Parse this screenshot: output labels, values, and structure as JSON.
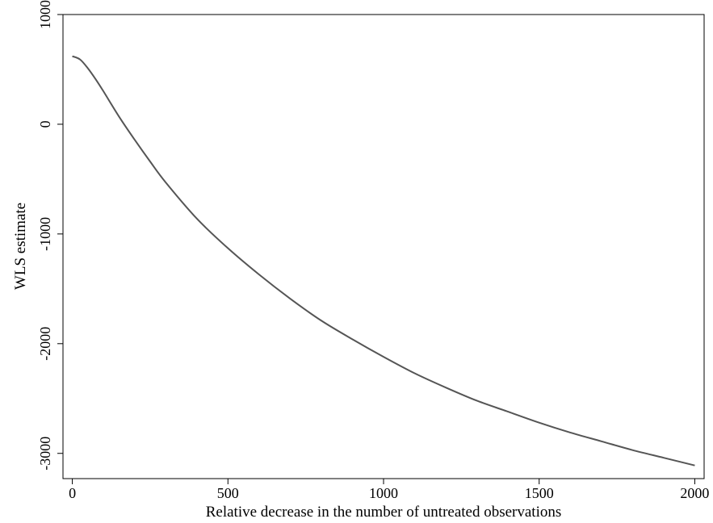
{
  "chart_data": {
    "type": "line",
    "title": "",
    "xlabel": "Relative decrease in the number of untreated observations",
    "ylabel": "WLS estimate",
    "xlim": [
      -30,
      2030
    ],
    "ylim": [
      -3230,
      1000
    ],
    "x_ticks": [
      0,
      500,
      1000,
      1500,
      2000
    ],
    "x_tick_labels": [
      "0",
      "500",
      "1000",
      "1500",
      "2000"
    ],
    "y_ticks": [
      1000,
      0,
      -1000,
      -2000,
      -3000
    ],
    "y_tick_labels": [
      "1000",
      "0",
      "-1000",
      "-2000",
      "-3000"
    ],
    "grid": false,
    "legend": "none",
    "series": [
      {
        "color": "#555555",
        "x": [
          0,
          25,
          50,
          75,
          100,
          150,
          200,
          250,
          300,
          400,
          500,
          600,
          700,
          800,
          900,
          1000,
          1100,
          1200,
          1300,
          1400,
          1500,
          1600,
          1700,
          1800,
          1900,
          2000
        ],
        "y": [
          620,
          590,
          510,
          410,
          300,
          70,
          -140,
          -340,
          -530,
          -860,
          -1130,
          -1370,
          -1590,
          -1790,
          -1960,
          -2120,
          -2270,
          -2400,
          -2520,
          -2620,
          -2720,
          -2810,
          -2890,
          -2970,
          -3040,
          -3110
        ]
      }
    ]
  }
}
